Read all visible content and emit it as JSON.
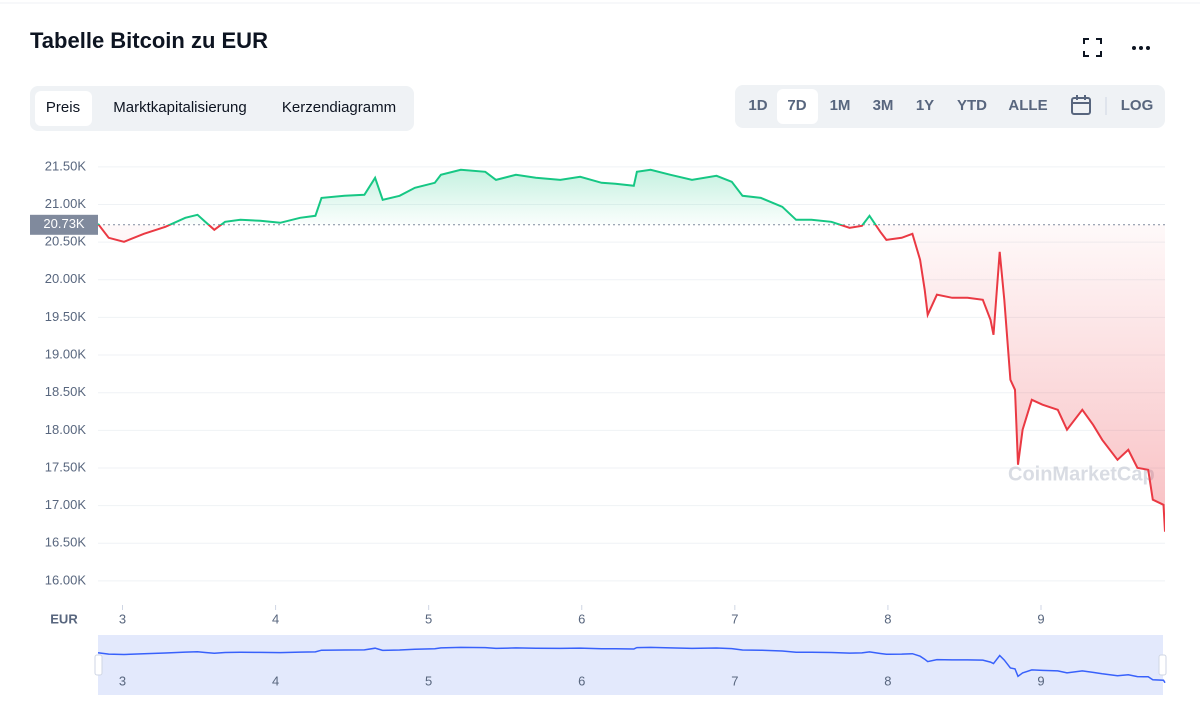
{
  "chart_data": {
    "type": "line",
    "title": "Tabelle Bitcoin zu EUR",
    "x": [
      2.84,
      2.91,
      3.01,
      3.14,
      3.28,
      3.41,
      3.49,
      3.54,
      3.6,
      3.67,
      3.77,
      3.9,
      4.03,
      4.16,
      4.26,
      4.3,
      4.45,
      4.58,
      4.65,
      4.7,
      4.81,
      4.91,
      5.04,
      5.08,
      5.21,
      5.37,
      5.44,
      5.57,
      5.7,
      5.86,
      5.99,
      6.13,
      6.22,
      6.34,
      6.36,
      6.45,
      6.58,
      6.72,
      6.88,
      6.98,
      7.05,
      7.17,
      7.31,
      7.4,
      7.5,
      7.63,
      7.75,
      7.83,
      7.88,
      7.95,
      7.99,
      8.09,
      8.16,
      8.21,
      8.24,
      8.26,
      8.32,
      8.42,
      8.52,
      8.62,
      8.67,
      8.69,
      8.73,
      8.76,
      8.8,
      8.83,
      8.85,
      8.88,
      8.94,
      9.01,
      9.11,
      9.17,
      9.27,
      9.34,
      9.4,
      9.5,
      9.57,
      9.63,
      9.7,
      9.73,
      9.8,
      9.81
    ],
    "values": [
      20743,
      20557,
      20504,
      20610,
      20703,
      20823,
      20863,
      20770,
      20663,
      20770,
      20796,
      20783,
      20756,
      20823,
      20849,
      21088,
      21115,
      21128,
      21354,
      21062,
      21115,
      21221,
      21288,
      21394,
      21460,
      21434,
      21327,
      21394,
      21354,
      21327,
      21367,
      21288,
      21274,
      21248,
      21434,
      21460,
      21394,
      21327,
      21381,
      21301,
      21115,
      21088,
      20969,
      20796,
      20796,
      20770,
      20690,
      20717,
      20849,
      20637,
      20530,
      20557,
      20610,
      20265,
      19867,
      19535,
      19801,
      19761,
      19761,
      19734,
      19468,
      19269,
      20371,
      19734,
      18671,
      18539,
      17543,
      18008,
      18406,
      18340,
      18273,
      18008,
      18273,
      18074,
      17874,
      17609,
      17742,
      17503,
      17476,
      17078,
      17011,
      16653
    ],
    "up_color": "#16c784",
    "down_color": "#ea3943",
    "reference": {
      "value": 20730,
      "label": "20.73K"
    },
    "xlim": [
      2.84,
      9.81
    ],
    "xticks": [
      3,
      4,
      5,
      6,
      7,
      8,
      9
    ],
    "ylim": [
      15680,
      21790
    ],
    "yticks": [
      {
        "value": 16000,
        "label": "16.00K"
      },
      {
        "value": 16500,
        "label": "16.50K"
      },
      {
        "value": 17000,
        "label": "17.00K"
      },
      {
        "value": 17500,
        "label": "17.50K"
      },
      {
        "value": 18000,
        "label": "18.00K"
      },
      {
        "value": 18500,
        "label": "18.50K"
      },
      {
        "value": 19000,
        "label": "19.00K"
      },
      {
        "value": 19500,
        "label": "19.50K"
      },
      {
        "value": 20000,
        "label": "20.00K"
      },
      {
        "value": 20500,
        "label": "20.50K"
      },
      {
        "value": 21000,
        "label": "21.00K"
      },
      {
        "value": 21500,
        "label": "21.50K"
      }
    ],
    "grid": true,
    "currency_label": "EUR",
    "watermark": "CoinMarketCap",
    "navigator_color": "#3861fb"
  },
  "tabs": [
    "Preis",
    "Marktkapitalisierung",
    "Kerzendiagramm"
  ],
  "ranges": [
    "1D",
    "7D",
    "1M",
    "3M",
    "1Y",
    "YTD",
    "ALLE"
  ],
  "log_button": "LOG"
}
